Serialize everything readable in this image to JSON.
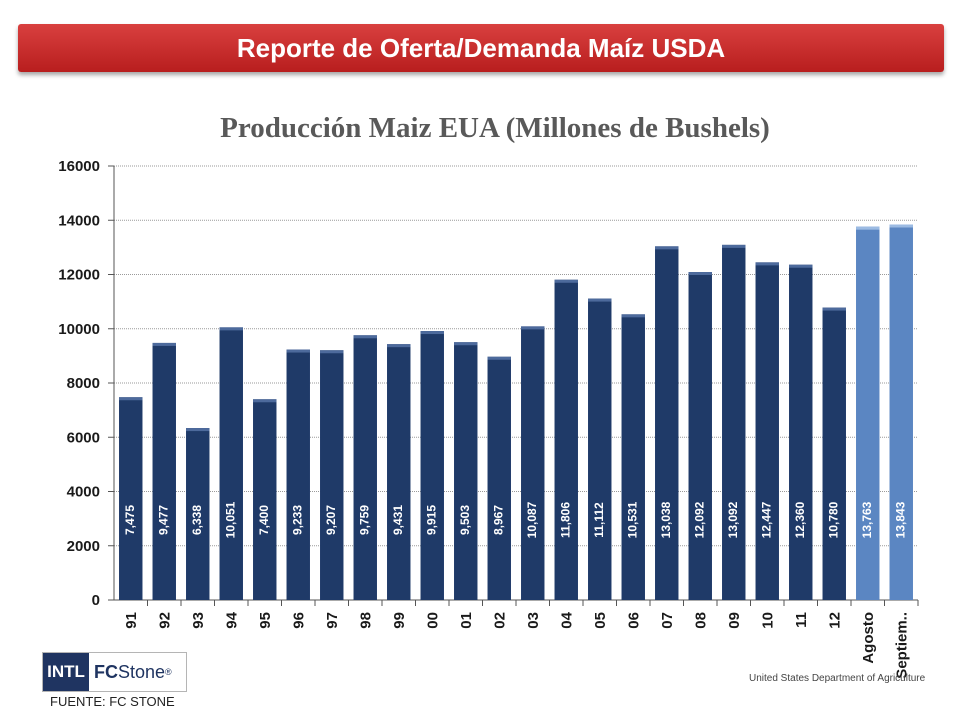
{
  "header": {
    "title": "Reporte de Oferta/Demanda Maíz USDA"
  },
  "footer": {
    "logo_left": "INTL",
    "logo_fc": "FC",
    "logo_stone": "Stone",
    "logo_reg": "®",
    "source": "FUENTE: FC STONE",
    "usda": "United States Department of Agriculture"
  },
  "colors": {
    "bar": "#1f3a68",
    "bar_highlight": "#5b86c2",
    "banner": "#c62828"
  },
  "chart_data": {
    "type": "bar",
    "title": "Producción Maiz EUA (Millones de Bushels)",
    "xlabel": "",
    "ylabel": "",
    "ylim": [
      0,
      16000
    ],
    "yticks": [
      "0",
      "2000",
      "4000",
      "6000",
      "8000",
      "10000",
      "12000",
      "14000",
      "16000"
    ],
    "grid": true,
    "categories": [
      "91",
      "92",
      "93",
      "94",
      "95",
      "96",
      "97",
      "98",
      "99",
      "00",
      "01",
      "02",
      "03",
      "04",
      "05",
      "06",
      "07",
      "08",
      "09",
      "10",
      "11",
      "12",
      "Agosto",
      "Septiem.."
    ],
    "values": [
      7475,
      9477,
      6338,
      10051,
      7400,
      9233,
      9207,
      9759,
      9431,
      9915,
      9503,
      8967,
      10087,
      11806,
      11112,
      10531,
      13038,
      12092,
      13092,
      12447,
      12360,
      10780,
      13763,
      13843
    ],
    "labels": [
      "7,475",
      "9,477",
      "6,338",
      "10,051",
      "7,400",
      "9,233",
      "9,207",
      "9,759",
      "9,431",
      "9,915",
      "9,503",
      "8,967",
      "10,087",
      "11,806",
      "11,112",
      "10,531",
      "13,038",
      "12,092",
      "13,092",
      "12,447",
      "12,360",
      "10,780",
      "13,763",
      "13,843"
    ],
    "highlighted": [
      "Agosto",
      "Septiem.."
    ]
  }
}
